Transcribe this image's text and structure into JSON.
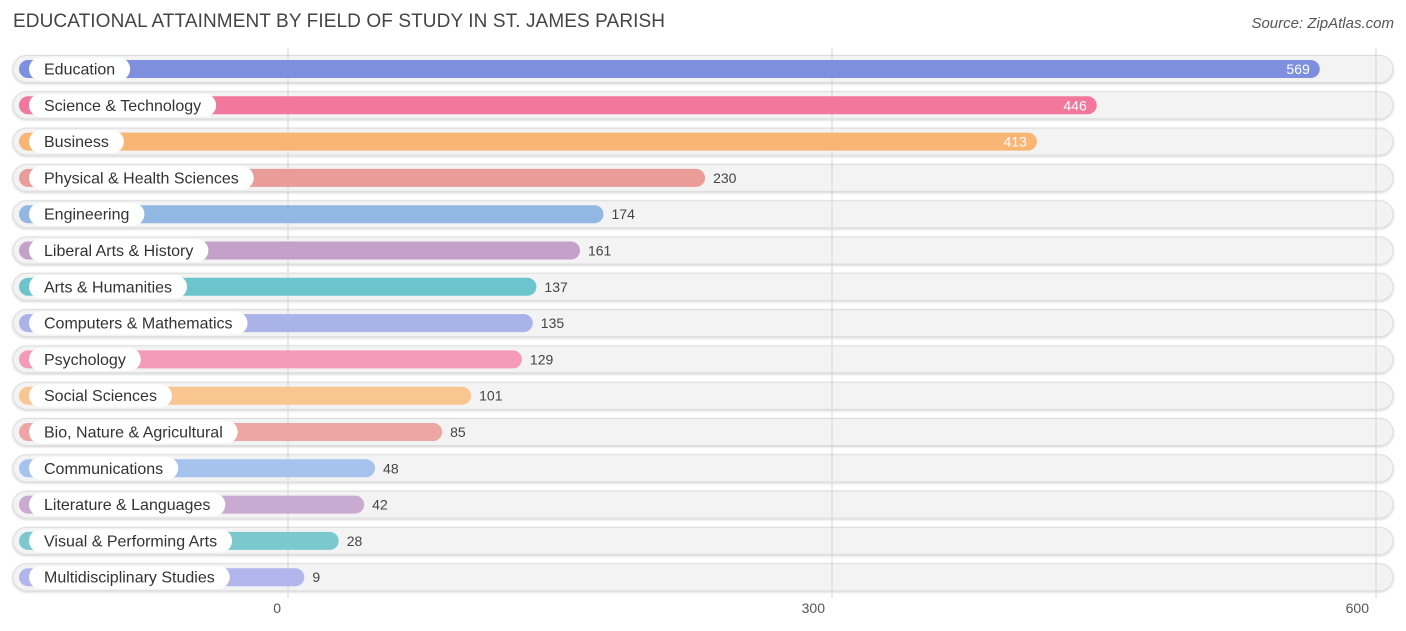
{
  "title": "EDUCATIONAL ATTAINMENT BY FIELD OF STUDY IN ST. JAMES PARISH",
  "source": "Source: ZipAtlas.com",
  "chart_data": {
    "type": "bar",
    "orientation": "horizontal",
    "categories": [
      "Education",
      "Science & Technology",
      "Business",
      "Physical & Health Sciences",
      "Engineering",
      "Liberal Arts & History",
      "Arts & Humanities",
      "Computers & Mathematics",
      "Psychology",
      "Social Sciences",
      "Bio, Nature & Agricultural",
      "Communications",
      "Literature & Languages",
      "Visual & Performing Arts",
      "Multidisciplinary Studies"
    ],
    "values": [
      569,
      446,
      413,
      230,
      174,
      161,
      137,
      135,
      129,
      101,
      85,
      48,
      42,
      28,
      9
    ],
    "value_labels": [
      "569",
      "446",
      "413",
      "230",
      "174",
      "161",
      "137",
      "135",
      "129",
      "101",
      "85",
      "48",
      "42",
      "28",
      "9"
    ],
    "colors": [
      "#7f8fdf",
      "#f2779d",
      "#f8b573",
      "#e99c98",
      "#93b7e3",
      "#c3a1c9",
      "#6cc4cc",
      "#a9b3e8",
      "#f59ab8",
      "#f9c590",
      "#eda6a4",
      "#a5c3ec",
      "#c9aad0",
      "#7bc9cf",
      "#b1b7ec"
    ],
    "xlim": [
      0,
      600
    ],
    "xticks": [
      0,
      300,
      600
    ],
    "xtick_labels": [
      "0",
      "300",
      "600"
    ],
    "grid": true,
    "legend": "none"
  }
}
